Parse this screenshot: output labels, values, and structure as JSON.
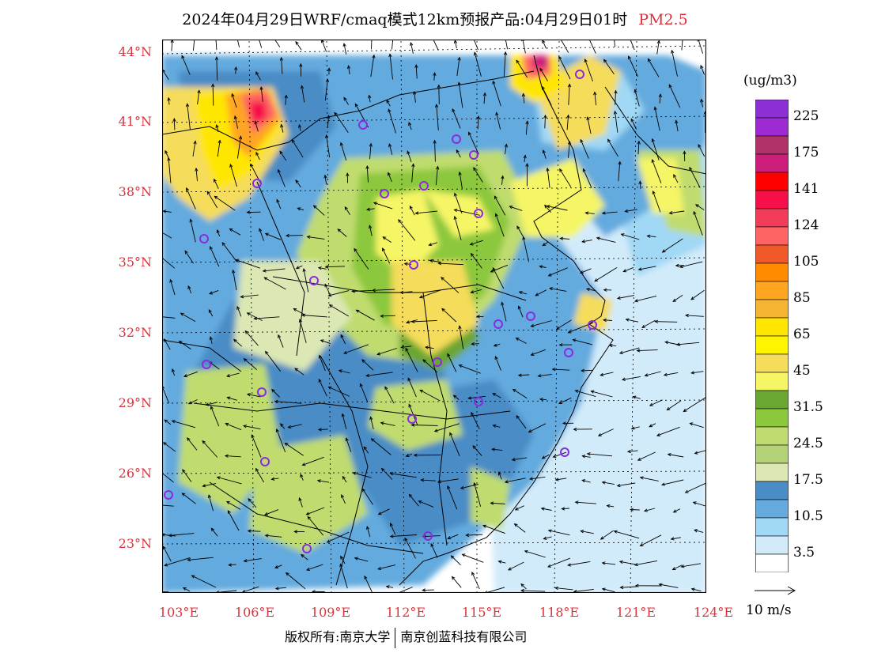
{
  "title": {
    "product": "2024年04月29日WRF/cmaq模式12km预报产品:04月29日01时",
    "pollutant": "PM2.5"
  },
  "latitude_labels": [
    "44°N",
    "41°N",
    "38°N",
    "35°N",
    "32°N",
    "29°N",
    "26°N",
    "23°N"
  ],
  "longitude_labels": [
    "103°E",
    "106°E",
    "109°E",
    "112°E",
    "115°E",
    "118°E",
    "121°E",
    "124°E"
  ],
  "legend": {
    "units": "(ug/m3)",
    "bins": [
      {
        "label": "225",
        "color": "#8d2fd6"
      },
      {
        "label": "",
        "color": "#9d2ad2"
      },
      {
        "label": "175",
        "color": "#b03268"
      },
      {
        "label": "",
        "color": "#cc1e7a"
      },
      {
        "label": "141",
        "color": "#ff0000"
      },
      {
        "label": "",
        "color": "#f5104a"
      },
      {
        "label": "124",
        "color": "#f23c5a"
      },
      {
        "label": "",
        "color": "#ff6464"
      },
      {
        "label": "105",
        "color": "#f05a28"
      },
      {
        "label": "",
        "color": "#ff8c00"
      },
      {
        "label": "85",
        "color": "#ffa520"
      },
      {
        "label": "",
        "color": "#f5b432"
      },
      {
        "label": "65",
        "color": "#ffe600"
      },
      {
        "label": "",
        "color": "#fff500"
      },
      {
        "label": "45",
        "color": "#f5dc5a"
      },
      {
        "label": "",
        "color": "#f5f566"
      },
      {
        "label": "31.5",
        "color": "#6aa632"
      },
      {
        "label": "",
        "color": "#8cc83c"
      },
      {
        "label": "24.5",
        "color": "#c0dc6e"
      },
      {
        "label": "",
        "color": "#b4d278"
      },
      {
        "label": "17.5",
        "color": "#dce8b4"
      },
      {
        "label": "",
        "color": "#4a8cc6"
      },
      {
        "label": "10.5",
        "color": "#64aade"
      },
      {
        "label": "",
        "color": "#a0d8f5"
      },
      {
        "label": "3.5",
        "color": "#d2ebfa"
      },
      {
        "label": "",
        "color": "#ffffff"
      }
    ]
  },
  "wind_reference": "10 m/s",
  "footer": {
    "left": "版权所有:南京大学",
    "right": "南京创蓝科技有限公司"
  },
  "colors": {
    "axis_label": "#e0303a",
    "station_marker": "#8a2be2"
  }
}
